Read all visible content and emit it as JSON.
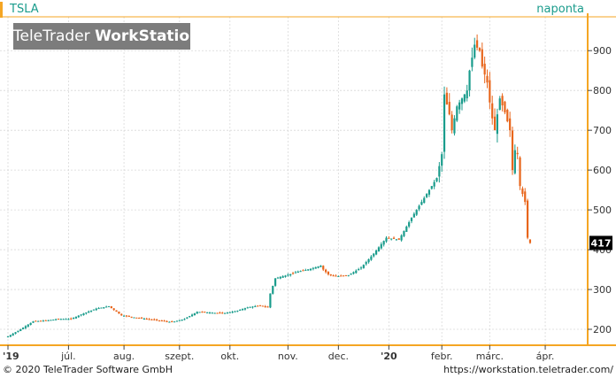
{
  "header": {
    "symbol": "TSLA",
    "interval": "naponta"
  },
  "logo": {
    "brand_light": "TeleTrader",
    "brand_bold": "WorkStation"
  },
  "footer": {
    "copyright": "© 2020 TeleTrader Software GmbH",
    "url": "https://workstation.teletrader.com/"
  },
  "colors": {
    "up": "#1a9c8c",
    "down": "#e8661c",
    "accent": "#f5a623",
    "grid": "#d8d8d8"
  },
  "chart_data": {
    "type": "candlestick",
    "ylim": [
      160,
      985
    ],
    "y_ticks": [
      200,
      300,
      400,
      500,
      600,
      700,
      800,
      900
    ],
    "x_ticks": [
      {
        "label": "'19",
        "index": 0
      },
      {
        "label": "júl.",
        "index": 24
      },
      {
        "label": "aug.",
        "index": 46
      },
      {
        "label": "szept.",
        "index": 68
      },
      {
        "label": "okt.",
        "index": 88
      },
      {
        "label": "nov.",
        "index": 111
      },
      {
        "label": "dec.",
        "index": 131
      },
      {
        "label": "'20",
        "index": 151
      },
      {
        "label": "febr.",
        "index": 172
      },
      {
        "label": "márc.",
        "index": 191
      },
      {
        "label": "ápr.",
        "index": 213
      }
    ],
    "last_value": 417,
    "last_label": "417",
    "key_closes": [
      [
        0,
        182
      ],
      [
        5,
        200
      ],
      [
        10,
        220
      ],
      [
        15,
        222
      ],
      [
        20,
        226
      ],
      [
        25,
        226
      ],
      [
        30,
        240
      ],
      [
        35,
        252
      ],
      [
        40,
        258
      ],
      [
        45,
        235
      ],
      [
        50,
        230
      ],
      [
        55,
        226
      ],
      [
        60,
        222
      ],
      [
        65,
        218
      ],
      [
        70,
        226
      ],
      [
        75,
        244
      ],
      [
        80,
        242
      ],
      [
        85,
        240
      ],
      [
        90,
        245
      ],
      [
        95,
        255
      ],
      [
        100,
        260
      ],
      [
        103,
        255
      ],
      [
        104,
        290
      ],
      [
        106,
        328
      ],
      [
        110,
        335
      ],
      [
        115,
        345
      ],
      [
        120,
        352
      ],
      [
        124,
        360
      ],
      [
        125,
        350
      ],
      [
        127,
        338
      ],
      [
        130,
        333
      ],
      [
        135,
        336
      ],
      [
        140,
        355
      ],
      [
        145,
        390
      ],
      [
        150,
        430
      ],
      [
        155,
        425
      ],
      [
        160,
        480
      ],
      [
        165,
        530
      ],
      [
        168,
        560
      ],
      [
        170,
        580
      ],
      [
        172,
        640
      ],
      [
        173,
        790
      ],
      [
        175,
        740
      ],
      [
        176,
        700
      ],
      [
        178,
        760
      ],
      [
        180,
        780
      ],
      [
        182,
        800
      ],
      [
        183,
        850
      ],
      [
        185,
        915
      ],
      [
        187,
        900
      ],
      [
        188,
        860
      ],
      [
        190,
        820
      ],
      [
        191,
        770
      ],
      [
        192,
        730
      ],
      [
        193,
        700
      ],
      [
        195,
        780
      ],
      [
        197,
        745
      ],
      [
        199,
        700
      ],
      [
        200,
        600
      ],
      [
        201,
        650
      ],
      [
        202,
        640
      ],
      [
        203,
        560
      ],
      [
        205,
        520
      ],
      [
        206,
        430
      ],
      [
        207,
        417
      ]
    ]
  }
}
